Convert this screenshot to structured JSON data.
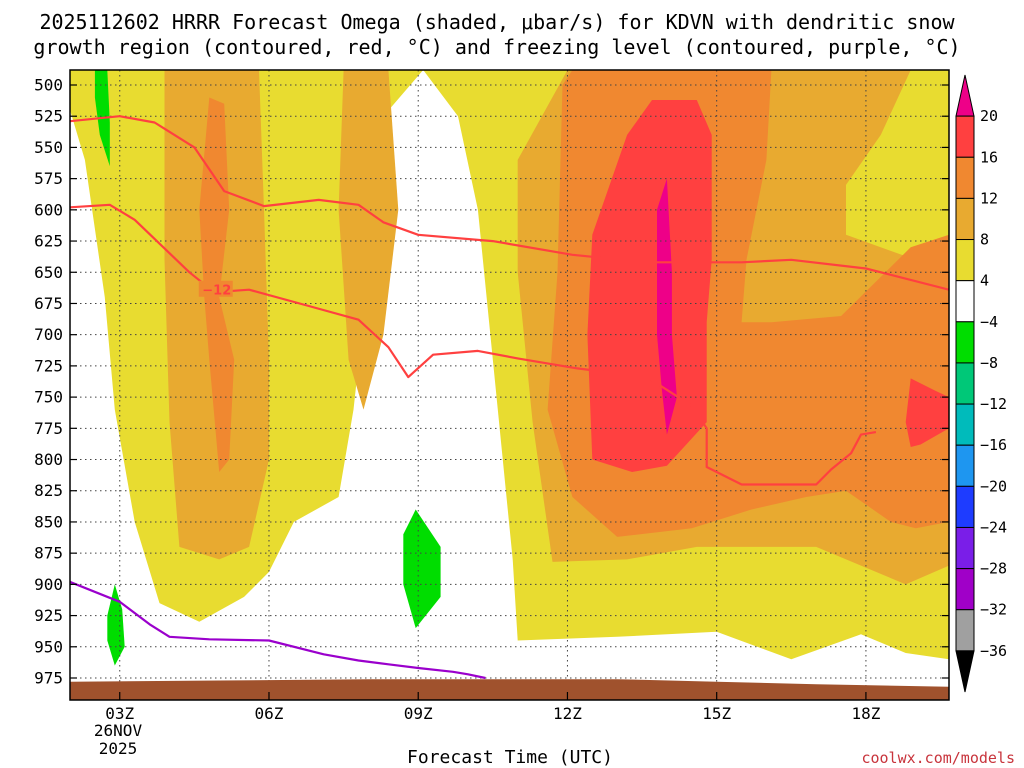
{
  "chart_data": {
    "type": "heatmap",
    "title_line1": "2025112602 HRRR Forecast Omega (shaded, μbar/s) for KDVN with dendritic snow",
    "title_line2": "growth region (contoured, red, °C) and freezing level (contoured, purple, °C)",
    "xlabel": "Forecast Time (UTC)",
    "credit": "coolwx.com/models",
    "date_label": [
      "26NOV",
      "2025"
    ],
    "x_range_hours": [
      2.0,
      19.67
    ],
    "x_ticks": [
      {
        "hour": 3,
        "label": "03Z"
      },
      {
        "hour": 6,
        "label": "06Z"
      },
      {
        "hour": 9,
        "label": "09Z"
      },
      {
        "hour": 12,
        "label": "12Z"
      },
      {
        "hour": 15,
        "label": "15Z"
      },
      {
        "hour": 18,
        "label": "18Z"
      }
    ],
    "y_range_hpa": [
      488,
      990
    ],
    "y_ticks": [
      500,
      525,
      550,
      575,
      600,
      625,
      650,
      675,
      700,
      725,
      750,
      775,
      800,
      825,
      850,
      875,
      900,
      925,
      950,
      975
    ],
    "colorbar": {
      "levels": [
        20,
        16,
        12,
        8,
        4,
        -4,
        -8,
        -12,
        -16,
        -20,
        -24,
        -28,
        -32,
        -36
      ],
      "colors": [
        "#ee0088",
        "#ff4040",
        "#f08830",
        "#e8aa30",
        "#e8dc30",
        "#ffffff",
        "#00dd00",
        "#00c878",
        "#00bbbb",
        "#1e96f0",
        "#1e3cff",
        "#7a1ee8",
        "#a000c8",
        "#a0a0a0",
        "#000000"
      ]
    },
    "shading": [
      {
        "name": "upward-4to8-band",
        "level": 4,
        "points": [
          [
            2.0,
            488
          ],
          [
            19.67,
            488
          ],
          [
            19.67,
            960
          ],
          [
            18.8,
            955
          ],
          [
            17.9,
            940
          ],
          [
            16.5,
            960
          ],
          [
            15.0,
            938
          ],
          [
            13.0,
            942
          ],
          [
            11.0,
            945
          ],
          [
            10.9,
            880
          ],
          [
            10.6,
            760
          ],
          [
            10.2,
            600
          ],
          [
            9.8,
            525
          ],
          [
            9.1,
            488
          ],
          [
            8.3,
            525
          ],
          [
            8.0,
            650
          ],
          [
            7.7,
            760
          ],
          [
            7.4,
            830
          ],
          [
            6.5,
            850
          ],
          [
            6.0,
            890
          ],
          [
            5.5,
            910
          ],
          [
            4.6,
            930
          ],
          [
            3.8,
            915
          ],
          [
            3.3,
            850
          ],
          [
            2.9,
            760
          ],
          [
            2.7,
            670
          ],
          [
            2.3,
            560
          ],
          [
            2.0,
            520
          ]
        ]
      },
      {
        "name": "upward-8to12-early",
        "level": 8,
        "points": [
          [
            3.9,
            488
          ],
          [
            5.8,
            488
          ],
          [
            5.9,
            600
          ],
          [
            6.0,
            720
          ],
          [
            6.0,
            800
          ],
          [
            5.6,
            870
          ],
          [
            5.0,
            880
          ],
          [
            4.2,
            870
          ],
          [
            4.0,
            770
          ],
          [
            3.9,
            640
          ]
        ]
      },
      {
        "name": "upward-8to12-mid",
        "level": 8,
        "points": [
          [
            7.5,
            488
          ],
          [
            8.4,
            488
          ],
          [
            8.6,
            600
          ],
          [
            8.3,
            700
          ],
          [
            7.9,
            760
          ],
          [
            7.6,
            720
          ],
          [
            7.4,
            600
          ]
        ]
      },
      {
        "name": "upward-8to12-main",
        "level": 8,
        "points": [
          [
            11.0,
            560
          ],
          [
            12.0,
            488
          ],
          [
            18.9,
            488
          ],
          [
            18.3,
            540
          ],
          [
            17.6,
            580
          ],
          [
            17.6,
            620
          ],
          [
            19.0,
            640
          ],
          [
            19.67,
            630
          ],
          [
            19.67,
            885
          ],
          [
            18.8,
            900
          ],
          [
            17.9,
            885
          ],
          [
            17.0,
            870
          ],
          [
            16.0,
            870
          ],
          [
            14.6,
            870
          ],
          [
            13.2,
            880
          ],
          [
            11.7,
            882
          ],
          [
            11.3,
            770
          ],
          [
            11.0,
            650
          ]
        ]
      },
      {
        "name": "upward-12to16-early",
        "level": 12,
        "points": [
          [
            4.8,
            510
          ],
          [
            5.1,
            515
          ],
          [
            5.2,
            600
          ],
          [
            5.0,
            670
          ],
          [
            5.3,
            720
          ],
          [
            5.2,
            800
          ],
          [
            5.0,
            810
          ],
          [
            4.8,
            720
          ],
          [
            4.7,
            670
          ],
          [
            4.6,
            600
          ]
        ]
      },
      {
        "name": "upward-12to16-main",
        "level": 12,
        "points": [
          [
            11.9,
            500
          ],
          [
            12.1,
            488
          ],
          [
            16.1,
            488
          ],
          [
            16.0,
            560
          ],
          [
            15.6,
            640
          ],
          [
            15.5,
            690
          ],
          [
            16.1,
            690
          ],
          [
            17.5,
            685
          ],
          [
            18.9,
            630
          ],
          [
            19.67,
            620
          ],
          [
            19.67,
            850
          ],
          [
            19.0,
            855
          ],
          [
            18.5,
            850
          ],
          [
            17.6,
            825
          ],
          [
            16.8,
            830
          ],
          [
            15.7,
            840
          ],
          [
            14.5,
            855
          ],
          [
            13.0,
            862
          ],
          [
            12.1,
            830
          ],
          [
            11.6,
            760
          ],
          [
            11.8,
            650
          ]
        ]
      },
      {
        "name": "upward-12to16-diamond",
        "level": 12,
        "points": [
          [
            16.9,
            725
          ],
          [
            17.2,
            760
          ],
          [
            16.9,
            790
          ],
          [
            16.5,
            760
          ]
        ]
      },
      {
        "name": "upward-16to20-main",
        "level": 16,
        "points": [
          [
            13.2,
            540
          ],
          [
            13.7,
            512
          ],
          [
            14.6,
            512
          ],
          [
            14.9,
            540
          ],
          [
            14.9,
            640
          ],
          [
            14.8,
            690
          ],
          [
            14.8,
            770
          ],
          [
            14.0,
            805
          ],
          [
            13.3,
            810
          ],
          [
            12.5,
            800
          ],
          [
            12.4,
            700
          ],
          [
            12.5,
            620
          ]
        ]
      },
      {
        "name": "upward-16to20-right",
        "level": 16,
        "points": [
          [
            18.9,
            735
          ],
          [
            19.4,
            745
          ],
          [
            19.67,
            750
          ],
          [
            19.67,
            775
          ],
          [
            19.1,
            788
          ],
          [
            18.9,
            790
          ],
          [
            18.8,
            770
          ]
        ]
      },
      {
        "name": "upward-over-20",
        "level": 20,
        "points": [
          [
            14.0,
            575
          ],
          [
            14.1,
            650
          ],
          [
            14.1,
            700
          ],
          [
            14.2,
            750
          ],
          [
            14.0,
            780
          ],
          [
            13.9,
            745
          ],
          [
            13.8,
            700
          ],
          [
            13.8,
            650
          ],
          [
            13.8,
            600
          ]
        ]
      },
      {
        "name": "downward-upper-left",
        "level": -4,
        "points": [
          [
            2.5,
            488
          ],
          [
            2.75,
            488
          ],
          [
            2.8,
            530
          ],
          [
            2.8,
            565
          ],
          [
            2.6,
            540
          ],
          [
            2.5,
            510
          ]
        ]
      },
      {
        "name": "downward-low-left",
        "level": -4,
        "points": [
          [
            2.9,
            900
          ],
          [
            3.05,
            920
          ],
          [
            3.1,
            950
          ],
          [
            2.9,
            965
          ],
          [
            2.75,
            945
          ],
          [
            2.75,
            925
          ]
        ]
      },
      {
        "name": "downward-low-mid",
        "level": -4,
        "points": [
          [
            8.95,
            840
          ],
          [
            9.45,
            870
          ],
          [
            9.45,
            910
          ],
          [
            8.95,
            935
          ],
          [
            8.7,
            900
          ],
          [
            8.7,
            860
          ]
        ]
      },
      {
        "name": "downward-low-mid-top",
        "level": -4,
        "points": [
          [
            8.95,
            840
          ],
          [
            9.05,
            850
          ],
          [
            8.85,
            860
          ]
        ]
      }
    ],
    "series": [
      {
        "name": "dgz -12 upper contour (red)",
        "color": "#ff4040",
        "points": [
          [
            2.0,
            529
          ],
          [
            3.0,
            525
          ],
          [
            3.7,
            530
          ],
          [
            4.5,
            550
          ],
          [
            5.1,
            585
          ],
          [
            5.9,
            597
          ],
          [
            7.0,
            592
          ],
          [
            7.8,
            596
          ],
          [
            8.3,
            610
          ],
          [
            9.0,
            620
          ],
          [
            10.5,
            625
          ],
          [
            12.1,
            636
          ],
          [
            13.6,
            642
          ],
          [
            15.5,
            642
          ],
          [
            16.5,
            640
          ],
          [
            18.0,
            647
          ],
          [
            19.67,
            664
          ]
        ]
      },
      {
        "name": "dgz -12 lower contour (red)",
        "color": "#ff4040",
        "points": [
          [
            2.0,
            598
          ],
          [
            2.8,
            596
          ],
          [
            3.3,
            608
          ],
          [
            4.4,
            650
          ],
          [
            4.9,
            666
          ],
          [
            5.6,
            664
          ],
          [
            6.8,
            677
          ],
          [
            7.8,
            688
          ],
          [
            8.4,
            710
          ],
          [
            8.8,
            734
          ],
          [
            9.3,
            716
          ],
          [
            10.2,
            713
          ],
          [
            11.0,
            719
          ],
          [
            12.2,
            727
          ],
          [
            13.6,
            734
          ],
          [
            14.5,
            757
          ],
          [
            14.8,
            775
          ],
          [
            14.8,
            806
          ],
          [
            15.5,
            820
          ],
          [
            17.0,
            820
          ],
          [
            17.3,
            808
          ],
          [
            17.7,
            795
          ],
          [
            17.9,
            780
          ],
          [
            18.2,
            778
          ]
        ]
      },
      {
        "name": "freezing level contour (purple)",
        "color": "#9a00cc",
        "points": [
          [
            2.0,
            898
          ],
          [
            3.0,
            914
          ],
          [
            3.6,
            932
          ],
          [
            4.0,
            942
          ],
          [
            4.8,
            944
          ],
          [
            6.0,
            945
          ],
          [
            7.1,
            956
          ],
          [
            7.8,
            961
          ],
          [
            8.4,
            964
          ],
          [
            9.0,
            967
          ],
          [
            9.7,
            970
          ],
          [
            10.0,
            972
          ],
          [
            10.35,
            975
          ]
        ]
      }
    ],
    "contour_label": {
      "text": "−12",
      "hour": 4.95,
      "hpa": 664
    },
    "terrain": {
      "name": "ground surface",
      "color": "#a0522d",
      "points": [
        [
          2.0,
          978
        ],
        [
          5.0,
          977
        ],
        [
          8.0,
          976
        ],
        [
          11.0,
          976
        ],
        [
          13.0,
          976
        ],
        [
          15.0,
          978
        ],
        [
          17.0,
          980
        ],
        [
          19.67,
          982
        ]
      ]
    }
  }
}
